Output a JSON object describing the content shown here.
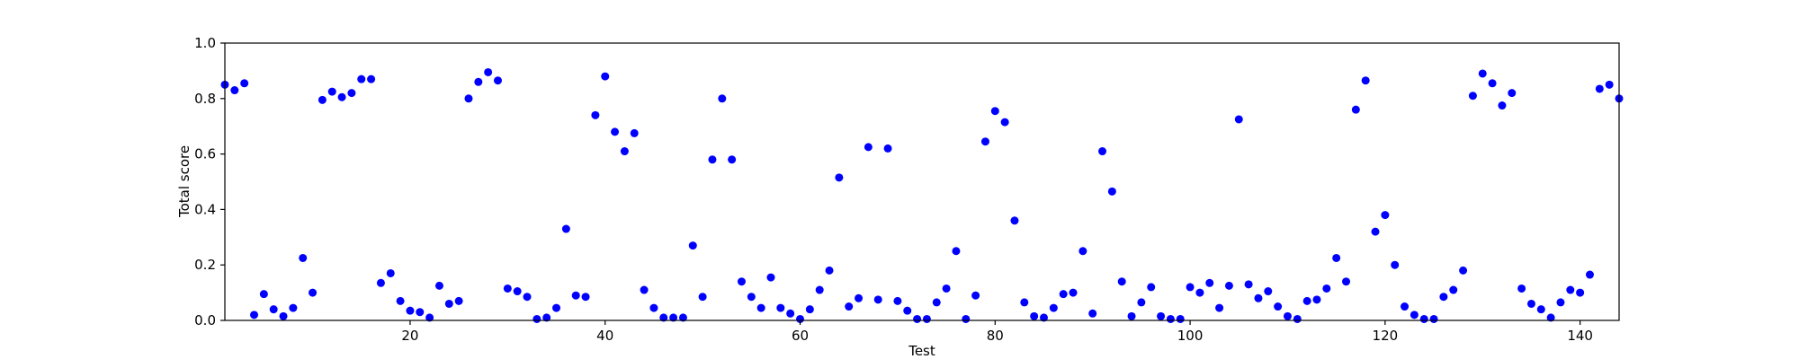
{
  "chart_data": {
    "type": "scatter",
    "title": "",
    "xlabel": "Test",
    "ylabel": "Total score",
    "xlim": [
      1,
      144
    ],
    "ylim": [
      0.0,
      1.0
    ],
    "xticks": [
      20,
      40,
      60,
      80,
      100,
      120,
      140
    ],
    "yticks": [
      0.0,
      0.2,
      0.4,
      0.6,
      0.8,
      1.0
    ],
    "grid": false,
    "marker_color": "#0000ff",
    "series": [
      {
        "x": [
          1,
          2,
          3,
          4,
          5,
          6,
          7,
          8,
          9,
          10,
          11,
          12,
          13,
          14,
          15,
          16,
          17,
          18,
          19,
          20,
          21,
          22,
          23,
          24,
          25,
          26,
          27,
          28,
          29,
          30,
          31,
          32,
          33,
          34,
          35,
          36,
          37,
          38,
          39,
          40,
          41,
          42,
          43,
          44,
          45,
          46,
          47,
          48,
          49,
          50,
          51,
          52,
          53,
          54,
          55,
          56,
          57,
          58,
          59,
          60,
          61,
          62,
          63,
          64,
          65,
          66,
          67,
          68,
          69,
          70,
          71,
          72,
          73,
          74,
          75,
          76,
          77,
          78,
          79,
          80,
          81,
          82,
          83,
          84,
          85,
          86,
          87,
          88,
          89,
          90,
          91,
          92,
          93,
          94,
          95,
          96,
          97,
          98,
          99,
          100,
          101,
          102,
          103,
          104,
          105,
          106,
          107,
          108,
          109,
          110,
          111,
          112,
          113,
          114,
          115,
          116,
          117,
          118,
          119,
          120,
          121,
          122,
          123,
          124,
          125,
          126,
          127,
          128,
          129,
          130,
          131,
          132,
          133,
          134,
          135,
          136,
          137,
          138,
          139,
          140,
          141,
          142,
          143,
          144
        ],
        "y": [
          0.85,
          0.83,
          0.855,
          0.02,
          0.095,
          0.04,
          0.015,
          0.045,
          0.225,
          0.1,
          0.795,
          0.825,
          0.805,
          0.82,
          0.87,
          0.87,
          0.135,
          0.17,
          0.07,
          0.035,
          0.03,
          0.01,
          0.125,
          0.06,
          0.07,
          0.8,
          0.86,
          0.895,
          0.865,
          0.115,
          0.105,
          0.085,
          0.005,
          0.01,
          0.045,
          0.33,
          0.09,
          0.085,
          0.74,
          0.88,
          0.68,
          0.61,
          0.675,
          0.11,
          0.045,
          0.01,
          0.01,
          0.01,
          0.27,
          0.085,
          0.58,
          0.8,
          0.58,
          0.14,
          0.085,
          0.045,
          0.155,
          0.045,
          0.025,
          0.005,
          0.04,
          0.11,
          0.18,
          0.515,
          0.05,
          0.08,
          0.625,
          0.075,
          0.62,
          0.07,
          0.035,
          0.005,
          0.005,
          0.065,
          0.115,
          0.25,
          0.005,
          0.09,
          0.645,
          0.755,
          0.715,
          0.36,
          0.065,
          0.015,
          0.01,
          0.045,
          0.095,
          0.1,
          0.25,
          0.025,
          0.61,
          0.465,
          0.14,
          0.015,
          0.065,
          0.12,
          0.015,
          0.005,
          0.005,
          0.12,
          0.1,
          0.135,
          0.045,
          0.125,
          0.725,
          0.13,
          0.08,
          0.105,
          0.05,
          0.015,
          0.005,
          0.07,
          0.075,
          0.115,
          0.225,
          0.14,
          0.76,
          0.865,
          0.32,
          0.38,
          0.2,
          0.05,
          0.02,
          0.005,
          0.005,
          0.085,
          0.11,
          0.18,
          0.81,
          0.89,
          0.855,
          0.775,
          0.82,
          0.115,
          0.06,
          0.04,
          0.01,
          0.065,
          0.11,
          0.1,
          0.165,
          0.835,
          0.85,
          0.8
        ]
      }
    ]
  }
}
